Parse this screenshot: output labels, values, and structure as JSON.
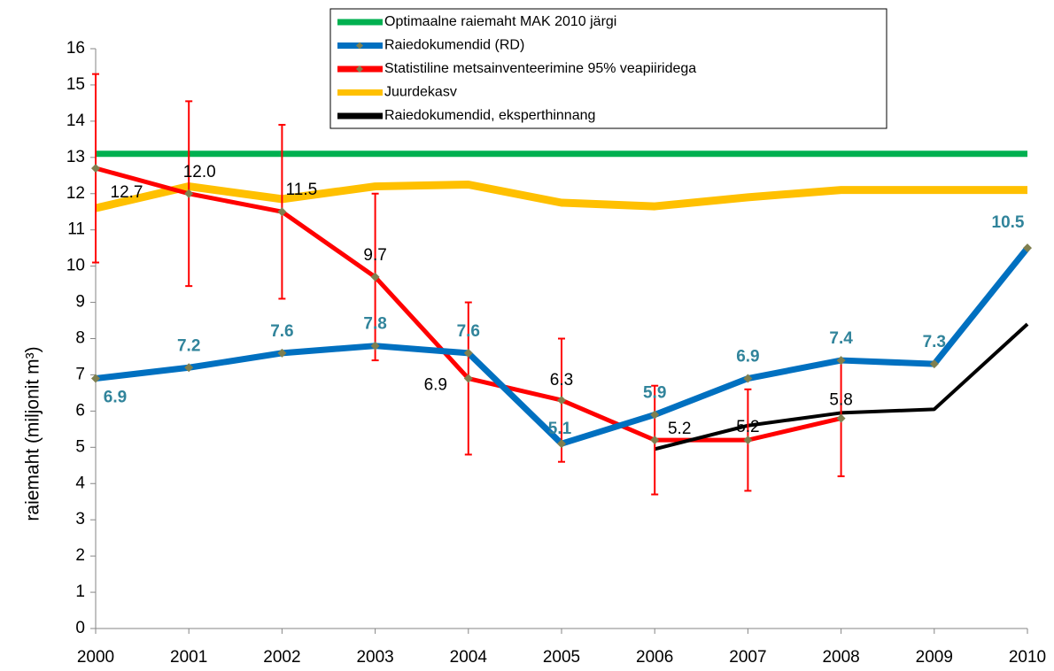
{
  "chart_data": {
    "type": "line",
    "ylabel": "raiemaht (miljonit m³)",
    "x": [
      2000,
      2001,
      2002,
      2003,
      2004,
      2005,
      2006,
      2007,
      2008,
      2009,
      2010
    ],
    "xlim": [
      2000,
      2010
    ],
    "xticks": [
      2000,
      2001,
      2002,
      2003,
      2004,
      2005,
      2006,
      2007,
      2008,
      2009,
      2010
    ],
    "ylim": [
      0,
      16
    ],
    "yticks": [
      0,
      1,
      2,
      3,
      4,
      5,
      6,
      7,
      8,
      9,
      10,
      11,
      12,
      13,
      14,
      15,
      16
    ],
    "grid": false,
    "legend": "top",
    "series": [
      {
        "name": "Optimaalne raiemaht MAK 2010 järgi",
        "color": "#00b050",
        "values": [
          13.1,
          13.1,
          13.1,
          13.1,
          13.1,
          13.1,
          13.1,
          13.1,
          13.1,
          13.1,
          13.1
        ]
      },
      {
        "name": "Raiedokumendid (RD)",
        "color": "#0070c0",
        "values": [
          6.9,
          7.2,
          7.6,
          7.8,
          7.6,
          5.1,
          5.9,
          6.9,
          7.4,
          7.3,
          10.5
        ]
      },
      {
        "name": "Statistiline metsainventeerimine 95% veapiiridega",
        "color": "#ff0000",
        "values": [
          12.7,
          12.0,
          11.5,
          9.7,
          6.9,
          6.3,
          5.2,
          5.2,
          5.8,
          null,
          null
        ],
        "value_labels": [
          "12.7",
          "12.0",
          "11.5",
          "9.7",
          "6.9",
          "6.3",
          "5.2",
          "5.2",
          "5.8",
          null,
          null
        ],
        "errors": [
          2.6,
          2.55,
          2.4,
          2.3,
          2.1,
          1.7,
          1.5,
          1.4,
          1.6,
          null,
          null
        ]
      },
      {
        "name": "Juurdekasv",
        "color": "#ffc000",
        "values": [
          11.6,
          12.2,
          11.85,
          12.2,
          12.25,
          11.75,
          11.65,
          11.9,
          12.1,
          12.1,
          12.1
        ]
      },
      {
        "name": "Raiedokumendid, eksperthinnang",
        "color": "#000000",
        "values": [
          null,
          null,
          null,
          null,
          null,
          null,
          4.95,
          5.6,
          5.95,
          6.05,
          8.4
        ]
      }
    ]
  }
}
